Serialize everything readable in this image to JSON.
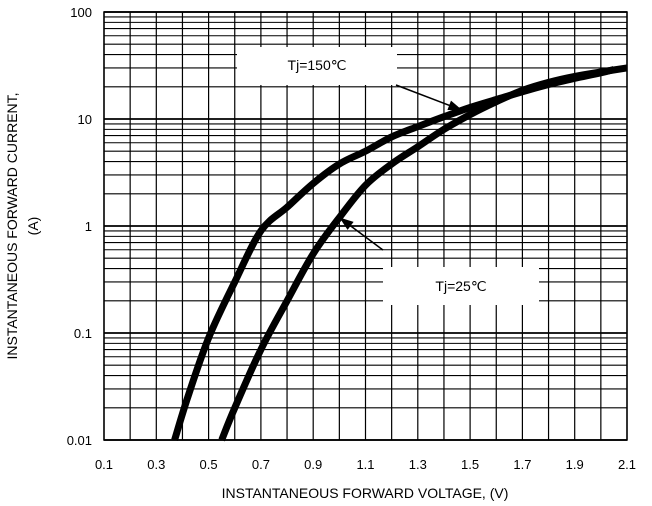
{
  "chart_data": {
    "type": "line",
    "xlabel": "INSTANTANEOUS FORWARD VOLTAGE, (V)",
    "ylabel_line1": "INSTANTANEOUS FORWARD CURRENT,",
    "ylabel_line2": "(A)",
    "x_scale": "linear",
    "y_scale": "log",
    "xlim": [
      0.1,
      2.1
    ],
    "ylim": [
      0.01,
      100
    ],
    "grid": true,
    "x_ticks": [
      "0.1",
      "0.3",
      "0.5",
      "0.7",
      "0.9",
      "1.1",
      "1.3",
      "1.5",
      "1.7",
      "1.9",
      "2.1"
    ],
    "y_ticks": [
      "0.01",
      "0.1",
      "1",
      "10",
      "100"
    ],
    "series": [
      {
        "name": "Tj=150℃",
        "x": [
          0.37,
          0.42,
          0.5,
          0.6,
          0.7,
          0.8,
          0.9,
          1.0,
          1.1,
          1.2,
          1.3,
          1.4,
          1.5,
          1.6,
          1.7,
          1.8,
          1.9,
          2.0,
          2.05
        ],
        "y": [
          0.01,
          0.025,
          0.09,
          0.3,
          0.9,
          1.5,
          2.5,
          3.8,
          5.0,
          6.8,
          8.5,
          10.5,
          12.8,
          15.2,
          18.0,
          21.0,
          24.0,
          27.0,
          29.0
        ]
      },
      {
        "name": "Tj=25℃",
        "x": [
          0.55,
          0.6,
          0.7,
          0.8,
          0.9,
          1.0,
          1.1,
          1.2,
          1.3,
          1.4,
          1.5,
          1.6,
          1.7,
          1.8,
          1.9,
          2.0,
          2.1
        ],
        "y": [
          0.01,
          0.02,
          0.07,
          0.2,
          0.55,
          1.2,
          2.4,
          3.8,
          5.5,
          8.0,
          11.0,
          14.5,
          18.5,
          22.0,
          25.0,
          27.5,
          30.0
        ]
      }
    ],
    "annotations": [
      {
        "text": "Tj=150℃",
        "series": 0
      },
      {
        "text": "Tj=25℃",
        "series": 1
      }
    ]
  }
}
